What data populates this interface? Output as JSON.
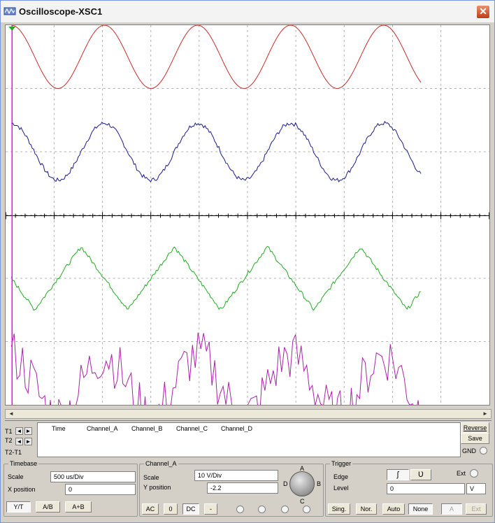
{
  "window": {
    "title": "Oscilloscope-XSC1",
    "close_glyph": "✕"
  },
  "screen": {
    "background": "#ffffff",
    "channels": [
      {
        "name": "A",
        "color": "#cc2a2a",
        "shape": "sine",
        "periods_visible": 4.4,
        "offset_div": 2.5,
        "amplitude_div": 0.5
      },
      {
        "name": "B",
        "color": "#1a1a8c",
        "shape": "noisy-sine",
        "periods_visible": 4.4,
        "offset_div": 1.0,
        "amplitude_div": 0.45
      },
      {
        "name": "C",
        "color": "#22aa22",
        "shape": "triangle",
        "periods_visible": 4.4,
        "offset_div": -1.0,
        "amplitude_div": 0.5
      },
      {
        "name": "D",
        "color": "#aa22aa",
        "shape": "noise",
        "periods_visible": 4.4,
        "offset_div": -2.7,
        "amplitude_div": 0.6
      }
    ]
  },
  "readout": {
    "cursors": [
      "T1",
      "T2",
      "T2-T1"
    ],
    "columns": [
      "Time",
      "Channel_A",
      "Channel_B",
      "Channel_C",
      "Channel_D"
    ],
    "reverse_label": "Reverse",
    "save_label": "Save",
    "gnd_label": "GND"
  },
  "timebase": {
    "title": "Timebase",
    "scale_label": "Scale",
    "scale_value": "500 us/Div",
    "xpos_label": "X position",
    "xpos_value": "0",
    "modes": [
      "Y/T",
      "A/B",
      "A+B"
    ]
  },
  "channel": {
    "title": "Channel_A",
    "scale_label": "Scale",
    "scale_value": "10  V/Div",
    "ypos_label": "Y position",
    "ypos_value": "-2.2",
    "coupling": [
      "AC",
      "0",
      "DC",
      "-"
    ],
    "knob_letters": [
      "A",
      "B",
      "C",
      "D"
    ]
  },
  "trigger": {
    "title": "Trigger",
    "edge_label": "Edge",
    "edge_rising": "ʃ",
    "edge_falling": "Ʋ",
    "ext_label": "Ext",
    "level_label": "Level",
    "level_value": "0",
    "level_unit": "V",
    "modes": [
      "Sing.",
      "Nor.",
      "Auto",
      "None"
    ],
    "sources": [
      "A",
      "Ext"
    ]
  }
}
